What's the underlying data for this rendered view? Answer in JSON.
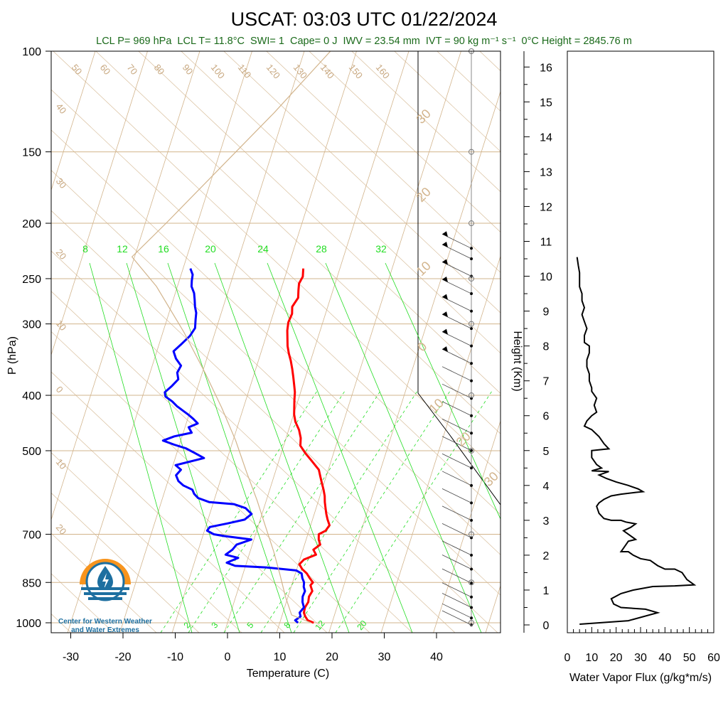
{
  "title": "USCAT: 03:03 UTC 01/22/2024",
  "subtitle": {
    "lcl_p": "LCL P= 969 hPa",
    "lcl_t": "LCL T= 11.8°C",
    "swi": "SWI= 1",
    "cape": "Cape= 0 J",
    "iwv": "IWV = 23.54 mm",
    "ivt": "IVT = 90 kg m⁻¹ s⁻¹",
    "freezing": "0°C Height = 2845.76 m"
  },
  "logo": {
    "line1": "Center for Western Weather",
    "line2": "and Water Extremes"
  },
  "colors": {
    "temperature": "#ff0000",
    "dewpoint": "#0000ff",
    "isotherm": "#d2b48c",
    "isobar": "#d2b48c",
    "mixing_ratio": "#22dd22",
    "flux": "#000000",
    "subtitle": "#1a6a1a",
    "logo_orange": "#f7941d",
    "logo_blue": "#1d6fa0"
  },
  "chart_data": [
    {
      "type": "line",
      "chart": "skew-t",
      "xlabel": "Temperature (C)",
      "ylabel": "P (hPa)",
      "x_ticks": [
        -30,
        -20,
        -10,
        0,
        10,
        20,
        30,
        40
      ],
      "y_ticks": [
        100,
        150,
        200,
        250,
        300,
        400,
        500,
        700,
        850,
        1000
      ],
      "xlim": [
        -34,
        52
      ],
      "ylim": [
        1050,
        100
      ],
      "y_scale": "log",
      "isotherm_labels": [
        "50",
        "60",
        "70",
        "80",
        "90",
        "100",
        "110",
        "120",
        "130",
        "140",
        "150",
        "160",
        "40",
        "30",
        "20",
        "10",
        "0",
        "10",
        "20"
      ],
      "mixing_ratio_labels_top": [
        "8",
        "12",
        "16",
        "20",
        "24",
        "28",
        "32"
      ],
      "mixing_ratio_labels_bottom": [
        "2",
        "3",
        "5",
        "8",
        "12",
        "20"
      ],
      "dry_adiabat_labels": [
        "30",
        "20",
        "10",
        "0",
        "10",
        "20",
        "30"
      ],
      "series": [
        {
          "name": "Temperature",
          "points": [
            [
              16.5,
              1000
            ],
            [
              15.2,
              990
            ],
            [
              14.5,
              975
            ],
            [
              14.0,
              960
            ],
            [
              13.9,
              940
            ],
            [
              14.2,
              920
            ],
            [
              14.0,
              900
            ],
            [
              14.3,
              880
            ],
            [
              13.6,
              860
            ],
            [
              13.9,
              850
            ],
            [
              13.0,
              835
            ],
            [
              12.2,
              820
            ],
            [
              11.0,
              805
            ],
            [
              10.2,
              790
            ],
            [
              10.8,
              775
            ],
            [
              12.8,
              760
            ],
            [
              12.0,
              745
            ],
            [
              13.0,
              730
            ],
            [
              12.4,
              715
            ],
            [
              12.1,
              700
            ],
            [
              13.2,
              690
            ],
            [
              13.6,
              675
            ],
            [
              12.9,
              660
            ],
            [
              12.3,
              645
            ],
            [
              11.8,
              630
            ],
            [
              11.3,
              615
            ],
            [
              10.9,
              600
            ],
            [
              10.3,
              585
            ],
            [
              9.6,
              570
            ],
            [
              8.9,
              555
            ],
            [
              8.2,
              540
            ],
            [
              6.2,
              520
            ],
            [
              4.6,
              505
            ],
            [
              3.2,
              490
            ],
            [
              2.8,
              475
            ],
            [
              2.0,
              460
            ],
            [
              0.8,
              445
            ],
            [
              0.1,
              432
            ],
            [
              -0.3,
              420
            ],
            [
              -0.7,
              408
            ],
            [
              -1.1,
              395
            ],
            [
              -1.6,
              385
            ],
            [
              -2.3,
              372
            ],
            [
              -3.0,
              360
            ],
            [
              -3.8,
              348
            ],
            [
              -4.6,
              338
            ],
            [
              -5.3,
              328
            ],
            [
              -5.8,
              318
            ],
            [
              -6.3,
              308
            ],
            [
              -6.6,
              298
            ],
            [
              -6.4,
              288
            ],
            [
              -6.8,
              280
            ],
            [
              -6.2,
              270
            ],
            [
              -6.6,
              262
            ],
            [
              -6.9,
              255
            ],
            [
              -6.6,
              248
            ],
            [
              -7.0,
              240
            ]
          ]
        },
        {
          "name": "Dewpoint",
          "points": [
            [
              13.5,
              1000
            ],
            [
              12.8,
              990
            ],
            [
              13.6,
              975
            ],
            [
              13.2,
              960
            ],
            [
              13.7,
              940
            ],
            [
              13.1,
              920
            ],
            [
              12.8,
              900
            ],
            [
              12.9,
              880
            ],
            [
              12.4,
              865
            ],
            [
              12.2,
              850
            ],
            [
              11.6,
              835
            ],
            [
              11.2,
              820
            ],
            [
              10.0,
              810
            ],
            [
              4.0,
              800
            ],
            [
              -2.0,
              795
            ],
            [
              -3.8,
              785
            ],
            [
              -1.9,
              770
            ],
            [
              -4.5,
              760
            ],
            [
              -3.5,
              745
            ],
            [
              -3.0,
              730
            ],
            [
              -0.5,
              715
            ],
            [
              -6.0,
              705
            ],
            [
              -8.0,
              700
            ],
            [
              -9.5,
              690
            ],
            [
              -9.2,
              680
            ],
            [
              -6.0,
              670
            ],
            [
              -3.0,
              660
            ],
            [
              -2.0,
              645
            ],
            [
              -3.5,
              630
            ],
            [
              -6.0,
              620
            ],
            [
              -10.8,
              615
            ],
            [
              -13.2,
              605
            ],
            [
              -14.2,
              595
            ],
            [
              -14.8,
              585
            ],
            [
              -16.8,
              575
            ],
            [
              -18.0,
              565
            ],
            [
              -18.8,
              552
            ],
            [
              -18.2,
              540
            ],
            [
              -19.5,
              530
            ],
            [
              -14.5,
              515
            ],
            [
              -16.5,
              505
            ],
            [
              -18.6,
              495
            ],
            [
              -21.0,
              488
            ],
            [
              -23.4,
              480
            ],
            [
              -21.5,
              472
            ],
            [
              -18.4,
              465
            ],
            [
              -19.3,
              455
            ],
            [
              -17.8,
              448
            ],
            [
              -18.9,
              440
            ],
            [
              -20.2,
              432
            ],
            [
              -21.5,
              425
            ],
            [
              -22.8,
              418
            ],
            [
              -24.0,
              410
            ],
            [
              -25.6,
              402
            ],
            [
              -26.0,
              395
            ],
            [
              -25.0,
              385
            ],
            [
              -24.2,
              375
            ],
            [
              -24.8,
              365
            ],
            [
              -24.5,
              355
            ],
            [
              -25.9,
              345
            ],
            [
              -26.8,
              335
            ],
            [
              -25.7,
              325
            ],
            [
              -24.6,
              315
            ],
            [
              -24.1,
              305
            ],
            [
              -24.5,
              295
            ],
            [
              -24.8,
              287
            ],
            [
              -25.4,
              280
            ],
            [
              -25.9,
              272
            ],
            [
              -26.4,
              265
            ],
            [
              -27.3,
              258
            ],
            [
              -27.6,
              252
            ],
            [
              -27.8,
              246
            ],
            [
              -28.6,
              240
            ]
          ]
        },
        {
          "name": "Parcel",
          "points": [
            [
              16.0,
              1000
            ],
            [
              11.8,
              969
            ],
            [
              9.5,
              900
            ],
            [
              7.0,
              820
            ],
            [
              4.5,
              750
            ],
            [
              1.5,
              680
            ],
            [
              -1.8,
              610
            ],
            [
              -5.5,
              545
            ],
            [
              -9.5,
              480
            ],
            [
              -14.2,
              420
            ],
            [
              -19.5,
              365
            ],
            [
              -26.0,
              310
            ],
            [
              -34.0,
              258
            ],
            [
              -40.5,
              229
            ],
            [
              -36.0,
              200
            ],
            [
              -29.0,
              160
            ],
            [
              -22.0,
              128
            ],
            [
              -15.0,
              100
            ]
          ]
        }
      ]
    },
    {
      "type": "line",
      "chart": "wind-profile",
      "heights_km": [
        0.0,
        0.2,
        0.5,
        0.8,
        1.2,
        1.6,
        2.0,
        2.5,
        3.0,
        3.5,
        4.0,
        4.5,
        5.0,
        5.5,
        6.0,
        6.5,
        7.0,
        7.5,
        8.0,
        8.5,
        9.0,
        9.5,
        10.0,
        10.5,
        10.8
      ]
    },
    {
      "type": "line",
      "chart": "water-vapor-flux",
      "xlabel": "Water Vapor Flux (g/kg*m/s)",
      "ylabel": "Height (Km)",
      "x_ticks": [
        0,
        10,
        20,
        30,
        40,
        50,
        60
      ],
      "y_ticks": [
        0,
        1,
        2,
        3,
        4,
        5,
        6,
        7,
        8,
        9,
        10,
        11,
        12,
        13,
        14,
        15,
        16
      ],
      "xlim": [
        0,
        60
      ],
      "ylim": [
        -0.2,
        16.4
      ],
      "points": [
        [
          5,
          0.02
        ],
        [
          25,
          0.12
        ],
        [
          37,
          0.35
        ],
        [
          32,
          0.45
        ],
        [
          22,
          0.5
        ],
        [
          19,
          0.6
        ],
        [
          18,
          0.75
        ],
        [
          22,
          0.9
        ],
        [
          27,
          1.0
        ],
        [
          35,
          1.1
        ],
        [
          44,
          1.12
        ],
        [
          52,
          1.15
        ],
        [
          49,
          1.3
        ],
        [
          47,
          1.5
        ],
        [
          44,
          1.6
        ],
        [
          40,
          1.6
        ],
        [
          37,
          1.7
        ],
        [
          34,
          1.85
        ],
        [
          30,
          1.9
        ],
        [
          27,
          2.0
        ],
        [
          25,
          2.1
        ],
        [
          22,
          2.1
        ],
        [
          23,
          2.2
        ],
        [
          25,
          2.4
        ],
        [
          28,
          2.45
        ],
        [
          26,
          2.55
        ],
        [
          23,
          2.7
        ],
        [
          26,
          2.8
        ],
        [
          28,
          2.9
        ],
        [
          24,
          2.95
        ],
        [
          22,
          3.0
        ],
        [
          18,
          3.0
        ],
        [
          15,
          3.05
        ],
        [
          13,
          3.2
        ],
        [
          12,
          3.4
        ],
        [
          13,
          3.5
        ],
        [
          15,
          3.6
        ],
        [
          18,
          3.7
        ],
        [
          22,
          3.75
        ],
        [
          28,
          3.8
        ],
        [
          31,
          3.82
        ],
        [
          29,
          3.9
        ],
        [
          25,
          4.0
        ],
        [
          20,
          4.1
        ],
        [
          16,
          4.2
        ],
        [
          13,
          4.3
        ],
        [
          17,
          4.4
        ],
        [
          10,
          4.42
        ],
        [
          14,
          4.5
        ],
        [
          12,
          4.6
        ],
        [
          10,
          4.8
        ],
        [
          10,
          5.0
        ],
        [
          17,
          5.05
        ],
        [
          15,
          5.2
        ],
        [
          13,
          5.4
        ],
        [
          10,
          5.6
        ],
        [
          7,
          5.7
        ],
        [
          8,
          5.85
        ],
        [
          10,
          6.0
        ],
        [
          12,
          6.1
        ],
        [
          11,
          6.3
        ],
        [
          12,
          6.5
        ],
        [
          10,
          6.7
        ],
        [
          10,
          6.8
        ],
        [
          9,
          7.0
        ],
        [
          9,
          7.2
        ],
        [
          8,
          7.4
        ],
        [
          8,
          7.6
        ],
        [
          9,
          7.8
        ],
        [
          9,
          8.0
        ],
        [
          7,
          8.1
        ],
        [
          7,
          8.3
        ],
        [
          8,
          8.5
        ],
        [
          7,
          8.7
        ],
        [
          6,
          8.9
        ],
        [
          7,
          9.1
        ],
        [
          6,
          9.3
        ],
        [
          6,
          9.5
        ],
        [
          5,
          9.7
        ],
        [
          5,
          9.9
        ],
        [
          5,
          10.1
        ],
        [
          4.5,
          10.3
        ],
        [
          4,
          10.55
        ]
      ]
    }
  ]
}
